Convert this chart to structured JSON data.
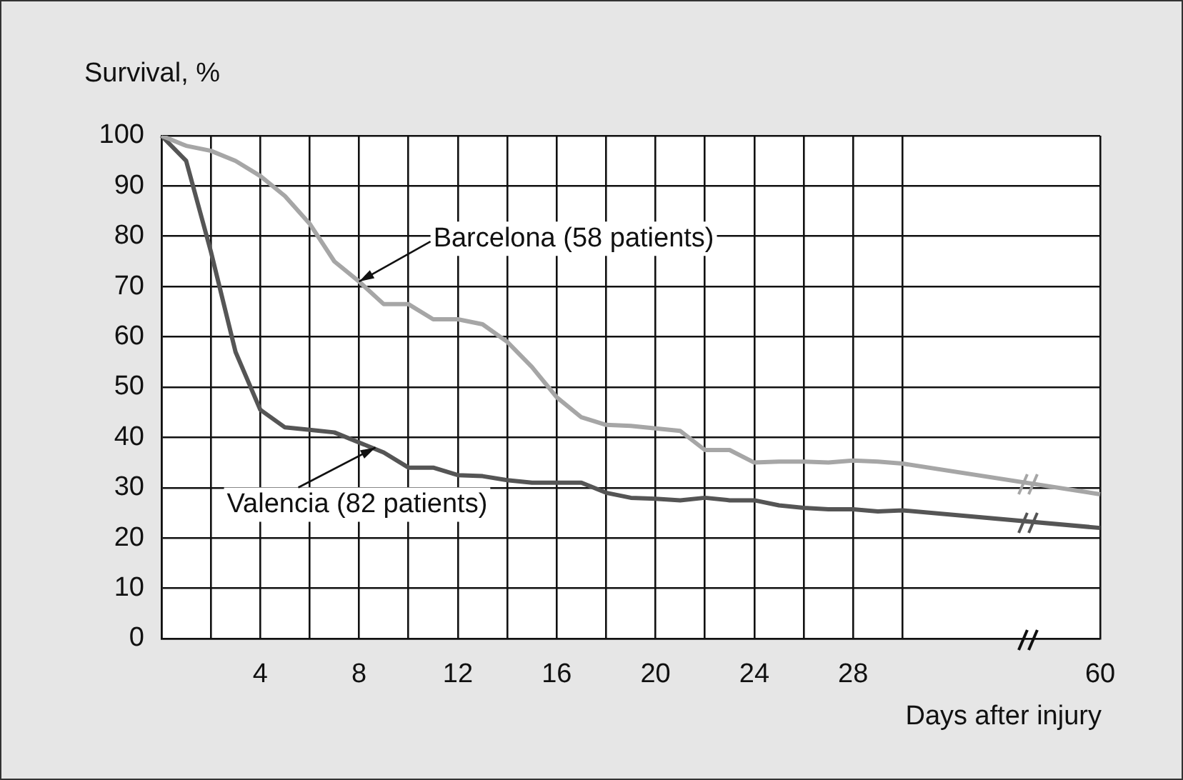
{
  "chart_data": {
    "type": "line",
    "ylabel": "Survival, %",
    "xlabel": "Days after injury",
    "categories": [
      null,
      null,
      null,
      null,
      "4",
      null,
      null,
      null,
      "8",
      null,
      null,
      null,
      "12",
      null,
      null,
      null,
      "16",
      null,
      null,
      null,
      "20",
      null,
      null,
      null,
      "24",
      null,
      null,
      null,
      "28",
      null,
      null,
      null,
      null,
      null,
      null,
      null,
      null,
      null,
      "60"
    ],
    "series": [
      {
        "color": "#a6a6a6",
        "values": [
          100,
          98,
          97,
          95,
          92,
          88,
          82.5,
          75,
          71,
          66.5,
          66.5,
          63.5,
          63.5,
          62.5,
          59,
          54,
          48,
          44,
          42.5,
          42.3,
          41.8,
          41.3,
          37.5,
          37.5,
          35,
          35.2,
          35.2,
          35,
          35.4,
          35.2,
          34.8,
          null,
          null,
          null,
          null,
          null,
          null,
          null,
          28.7
        ]
      },
      {
        "color": "#555555",
        "values": [
          100,
          95,
          77,
          57,
          45.5,
          42,
          41.5,
          41,
          39,
          37,
          34,
          34,
          32.5,
          32.3,
          31.5,
          31,
          31,
          31,
          29,
          28,
          27.8,
          27.5,
          28,
          27.5,
          27.5,
          26.5,
          26,
          25.7,
          25.7,
          25.3,
          25.5,
          null,
          null,
          null,
          null,
          null,
          null,
          null,
          22
        ]
      }
    ],
    "ylim": [
      0,
      100
    ],
    "yticks": [
      0,
      10,
      20,
      30,
      40,
      50,
      60,
      70,
      80,
      90,
      100
    ],
    "grid": true,
    "legend": false,
    "marker": "none",
    "line_style": "solid",
    "annotations": [
      {
        "text": "Barcelona (58 patients)",
        "x": "8",
        "y": 71
      },
      {
        "text": "Valencia (82 patients)",
        "y": 38
      }
    ]
  }
}
